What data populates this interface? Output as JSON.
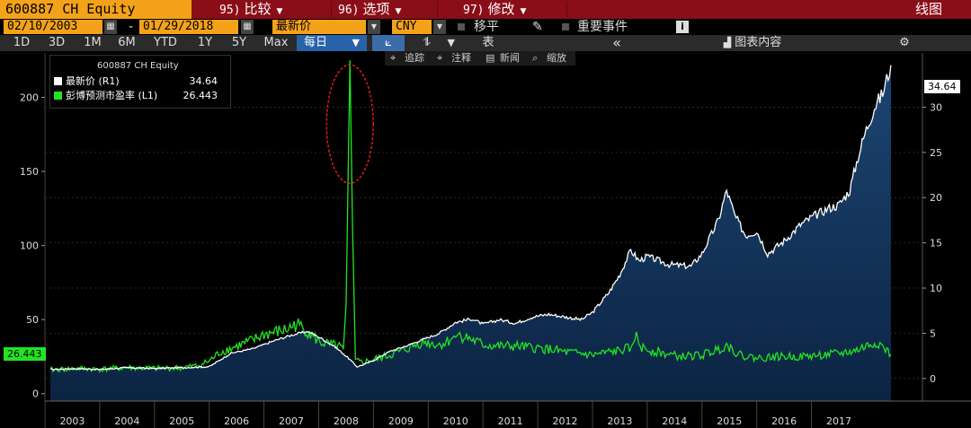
{
  "toolbar": {
    "ticker": "600887 CH Equity",
    "menus": [
      {
        "num": "95)",
        "label": "比较"
      },
      {
        "num": "96)",
        "label": "选项"
      },
      {
        "num": "97)",
        "label": "修改"
      }
    ],
    "chart_type": "线图"
  },
  "settings": {
    "start_date": "02/10/2003",
    "dash": "-",
    "end_date": "01/29/2018",
    "price_field": "最新价",
    "currency": "CNY",
    "shift_label": "移平",
    "events_label": "重要事件",
    "info_icon": "i"
  },
  "ranges": [
    "1D",
    "3D",
    "1M",
    "6M",
    "YTD",
    "1Y",
    "5Y",
    "Max"
  ],
  "frequency": "每日",
  "view": {
    "table_label": "表",
    "chart_content": "图表内容"
  },
  "legend": {
    "title": "600887 CH Equity",
    "items": [
      {
        "label": "最新价  (R1)",
        "value": "34.64",
        "color": "#ffffff"
      },
      {
        "label": "彭博预测市盈率  (L1)",
        "value": "26.443",
        "color": "#22e322"
      }
    ]
  },
  "chart_tools": [
    "追踪",
    "注释",
    "新闻",
    "缩放"
  ],
  "chart_data": {
    "type": "line",
    "x": [
      "2003",
      "2004",
      "2005",
      "2006",
      "2007",
      "2008",
      "2009",
      "2010",
      "2011",
      "2012",
      "2013",
      "2014",
      "2015",
      "2016",
      "2017"
    ],
    "y_left_ticks": [
      "0",
      "50",
      "100",
      "150",
      "200"
    ],
    "y_right_ticks": [
      "0",
      "5",
      "10",
      "15",
      "20",
      "25",
      "30"
    ],
    "y_left_range": [
      -5,
      230
    ],
    "y_right_range": [
      -2.5,
      36
    ],
    "series": [
      {
        "name": "最新价 (R1)",
        "axis": "right",
        "color": "#ffffff",
        "last_value": "34.64",
        "points": [
          [
            2003.1,
            1.0
          ],
          [
            2003.6,
            1.1
          ],
          [
            2004.0,
            1.0
          ],
          [
            2004.5,
            1.2
          ],
          [
            2005.0,
            1.1
          ],
          [
            2005.5,
            1.2
          ],
          [
            2006.0,
            1.3
          ],
          [
            2006.4,
            2.8
          ],
          [
            2006.8,
            3.3
          ],
          [
            2007.2,
            4.2
          ],
          [
            2007.5,
            4.8
          ],
          [
            2007.8,
            5.2
          ],
          [
            2008.0,
            4.6
          ],
          [
            2008.3,
            3.5
          ],
          [
            2008.55,
            2.2
          ],
          [
            2008.7,
            1.3
          ],
          [
            2008.85,
            1.6
          ],
          [
            2009.0,
            2.0
          ],
          [
            2009.3,
            3.0
          ],
          [
            2009.6,
            3.6
          ],
          [
            2009.9,
            4.3
          ],
          [
            2010.2,
            5.0
          ],
          [
            2010.5,
            6.2
          ],
          [
            2010.8,
            6.6
          ],
          [
            2011.0,
            6.0
          ],
          [
            2011.3,
            6.5
          ],
          [
            2011.6,
            6.1
          ],
          [
            2011.9,
            6.8
          ],
          [
            2012.2,
            7.1
          ],
          [
            2012.5,
            6.8
          ],
          [
            2012.8,
            6.5
          ],
          [
            2013.0,
            7.3
          ],
          [
            2013.3,
            9.5
          ],
          [
            2013.5,
            11.5
          ],
          [
            2013.7,
            14.2
          ],
          [
            2013.85,
            13.0
          ],
          [
            2014.0,
            13.5
          ],
          [
            2014.4,
            12.6
          ],
          [
            2014.8,
            12.4
          ],
          [
            2015.0,
            13.8
          ],
          [
            2015.3,
            17.5
          ],
          [
            2015.45,
            20.8
          ],
          [
            2015.6,
            18.0
          ],
          [
            2015.8,
            15.8
          ],
          [
            2016.0,
            16.3
          ],
          [
            2016.2,
            13.8
          ],
          [
            2016.5,
            15.2
          ],
          [
            2016.8,
            17.0
          ],
          [
            2017.0,
            17.8
          ],
          [
            2017.3,
            18.8
          ],
          [
            2017.5,
            19.2
          ],
          [
            2017.7,
            20.8
          ],
          [
            2017.85,
            24.5
          ],
          [
            2018.0,
            27.5
          ],
          [
            2018.15,
            30.0
          ],
          [
            2018.3,
            31.5
          ],
          [
            2018.45,
            34.64
          ]
        ]
      },
      {
        "name": "彭博预测市盈率 (L1)",
        "axis": "left",
        "color": "#22e322",
        "last_value": "26.443",
        "points": [
          [
            2003.1,
            16
          ],
          [
            2003.6,
            17
          ],
          [
            2004.0,
            16.5
          ],
          [
            2004.5,
            17.5
          ],
          [
            2005.0,
            17
          ],
          [
            2005.5,
            17.5
          ],
          [
            2005.8,
            19
          ],
          [
            2006.0,
            22
          ],
          [
            2006.2,
            28
          ],
          [
            2006.5,
            32
          ],
          [
            2006.8,
            36
          ],
          [
            2007.0,
            40
          ],
          [
            2007.4,
            43
          ],
          [
            2007.6,
            47
          ],
          [
            2007.8,
            42
          ],
          [
            2008.0,
            35
          ],
          [
            2008.2,
            33
          ],
          [
            2008.35,
            32
          ],
          [
            2008.45,
            30
          ],
          [
            2008.5,
            60
          ],
          [
            2008.57,
            225
          ],
          [
            2008.62,
            110
          ],
          [
            2008.67,
            22
          ],
          [
            2008.8,
            21
          ],
          [
            2009.0,
            23
          ],
          [
            2009.3,
            26
          ],
          [
            2009.6,
            30
          ],
          [
            2009.9,
            35
          ],
          [
            2010.2,
            33
          ],
          [
            2010.4,
            36
          ],
          [
            2010.5,
            40
          ],
          [
            2010.7,
            38
          ],
          [
            2011.0,
            33
          ],
          [
            2011.3,
            32
          ],
          [
            2011.6,
            32
          ],
          [
            2011.9,
            31
          ],
          [
            2012.2,
            30
          ],
          [
            2012.5,
            28
          ],
          [
            2012.8,
            27
          ],
          [
            2013.0,
            26
          ],
          [
            2013.3,
            28
          ],
          [
            2013.5,
            29
          ],
          [
            2013.7,
            31
          ],
          [
            2013.8,
            38
          ],
          [
            2013.9,
            31
          ],
          [
            2014.2,
            28
          ],
          [
            2014.6,
            25
          ],
          [
            2015.0,
            26
          ],
          [
            2015.3,
            30
          ],
          [
            2015.45,
            33
          ],
          [
            2015.7,
            26
          ],
          [
            2016.0,
            24
          ],
          [
            2016.4,
            25
          ],
          [
            2016.8,
            25
          ],
          [
            2017.2,
            26
          ],
          [
            2017.5,
            27
          ],
          [
            2017.8,
            29
          ],
          [
            2018.0,
            32
          ],
          [
            2018.2,
            35
          ],
          [
            2018.35,
            30
          ],
          [
            2018.45,
            26.443
          ]
        ]
      }
    ],
    "annotation": {
      "type": "ellipse",
      "color": "#ff2020",
      "target": "2008 spike"
    },
    "grid": true
  }
}
